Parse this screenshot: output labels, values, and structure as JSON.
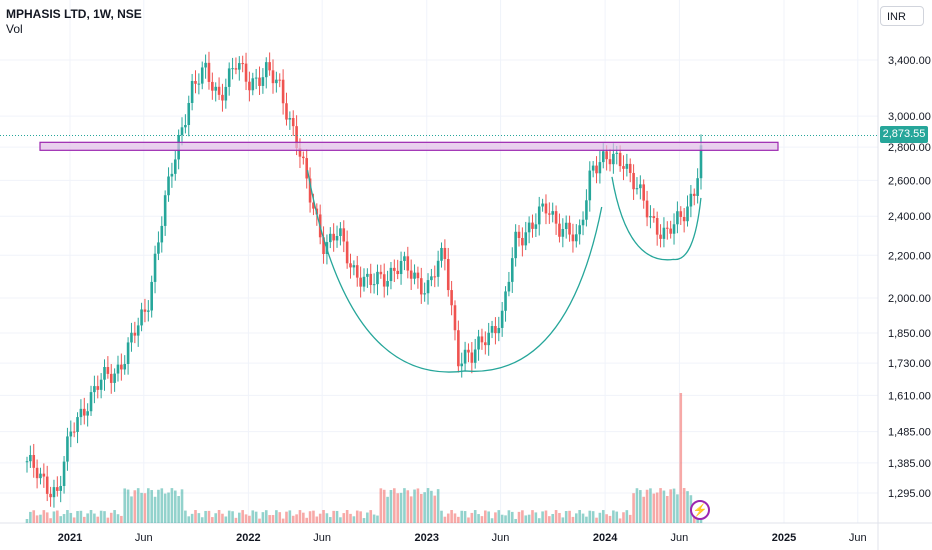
{
  "legend": {
    "symbol": "MPHASIS LTD, 1W, NSE",
    "volume_label": "Vol"
  },
  "currency": "INR",
  "last_price": "2,873.55",
  "flash_icon": "lightning-icon",
  "colors": {
    "up": "#26a69a",
    "down": "#ef5350",
    "zone_fill": "#e1bee7",
    "zone_border": "#9c27b0",
    "pattern_line": "#26a69a",
    "price_line": "#26a69a"
  },
  "chart_data": {
    "type": "candlestick",
    "title": "MPHASIS LTD, 1W, NSE",
    "y_scale": "log",
    "ylim": [
      1240,
      3700
    ],
    "xlim": [
      "2020-10-01",
      "2025-10-20"
    ],
    "y_ticks": [
      "3,400.00",
      "3,000.00",
      "2,800.00",
      "2,600.00",
      "2,400.00",
      "2,200.00",
      "2,000.00",
      "1,850.00",
      "1,730.00",
      "1,610.00",
      "1,485.00",
      "1,385.00",
      "1,295.00"
    ],
    "x_ticks": [
      "2021",
      "Jun",
      "2022",
      "Jun",
      "2023",
      "Jun",
      "2024",
      "Jun",
      "2025",
      "Jun"
    ],
    "last_price": 2873.55,
    "price_series": [
      [
        "2020-10-05",
        1390
      ],
      [
        "2020-11-02",
        1330
      ],
      [
        "2020-12-07",
        1300
      ],
      [
        "2021-01-04",
        1480
      ],
      [
        "2021-02-01",
        1580
      ],
      [
        "2021-03-01",
        1650
      ],
      [
        "2021-04-05",
        1700
      ],
      [
        "2021-05-03",
        1800
      ],
      [
        "2021-06-07",
        1950
      ],
      [
        "2021-07-05",
        2350
      ],
      [
        "2021-08-02",
        2700
      ],
      [
        "2021-09-06",
        3200
      ],
      [
        "2021-10-04",
        3300
      ],
      [
        "2021-11-01",
        3150
      ],
      [
        "2021-12-06",
        3350
      ],
      [
        "2022-01-03",
        3250
      ],
      [
        "2022-02-07",
        3300
      ],
      [
        "2022-03-07",
        3200
      ],
      [
        "2022-04-04",
        2900
      ],
      [
        "2022-05-02",
        2550
      ],
      [
        "2022-06-06",
        2250
      ],
      [
        "2022-07-04",
        2300
      ],
      [
        "2022-08-01",
        2150
      ],
      [
        "2022-09-05",
        2050
      ],
      [
        "2022-10-03",
        2100
      ],
      [
        "2022-11-07",
        2150
      ],
      [
        "2022-12-05",
        2100
      ],
      [
        "2023-01-02",
        2050
      ],
      [
        "2023-02-06",
        2200
      ],
      [
        "2023-03-06",
        1760
      ],
      [
        "2023-04-03",
        1740
      ],
      [
        "2023-05-01",
        1850
      ],
      [
        "2023-06-05",
        1900
      ],
      [
        "2023-07-03",
        2300
      ],
      [
        "2023-08-07",
        2350
      ],
      [
        "2023-09-04",
        2450
      ],
      [
        "2023-10-02",
        2350
      ],
      [
        "2023-11-06",
        2250
      ],
      [
        "2023-12-04",
        2700
      ],
      [
        "2024-01-01",
        2700
      ],
      [
        "2024-02-05",
        2750
      ],
      [
        "2024-03-04",
        2550
      ],
      [
        "2024-04-01",
        2400
      ],
      [
        "2024-05-06",
        2300
      ],
      [
        "2024-06-03",
        2380
      ],
      [
        "2024-07-01",
        2550
      ],
      [
        "2024-07-22",
        2873.55
      ]
    ],
    "volume_spike": {
      "date": "2024-06-03"
    },
    "annotations": [
      {
        "type": "resistance_zone",
        "y_range": [
          2780,
          2830
        ]
      },
      {
        "type": "cup_curve",
        "start": [
          "2022-05-02",
          2660
        ],
        "bottom": [
          "2023-03-20",
          1700
        ],
        "end": [
          "2023-12-25",
          2450
        ]
      },
      {
        "type": "handle_curve",
        "start": [
          "2024-01-15",
          2620
        ],
        "bottom": [
          "2024-05-20",
          2180
        ],
        "end": [
          "2024-07-15",
          2500
        ]
      },
      {
        "type": "horizontal_price_line",
        "value": 2873.55
      }
    ],
    "grid": true
  }
}
